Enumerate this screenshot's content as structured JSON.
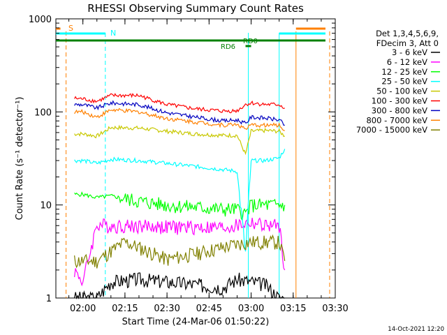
{
  "chart_data": {
    "type": "line",
    "title": "RHESSI Observing Summary Count Rates",
    "xlabel": "Start Time (24-Mar-06 01:50:22)",
    "ylabel": "Count Rate (s⁻¹ detector⁻¹)",
    "y_scale": "log",
    "ylim": [
      1,
      1000
    ],
    "xlim": [
      "01:50:22",
      "03:30:00"
    ],
    "x_ticks": [
      "02:00",
      "02:15",
      "02:30",
      "02:45",
      "03:00",
      "03:15",
      "03:30"
    ],
    "y_ticks": [
      "1",
      "10",
      "100",
      "1000"
    ],
    "timestamp": "14-Oct-2021 12:20",
    "legend": {
      "placement": "right",
      "header_line1": "Det 1,3,4,5,6,9,",
      "header_line2": "FDecim 3, Att 0"
    },
    "flags": [
      {
        "label": "S",
        "color": "#ff8000"
      },
      {
        "label": "N",
        "color": "#00ffff"
      },
      {
        "label": "RD0",
        "color": "#008000"
      },
      {
        "label": "RD6",
        "color": "#008000"
      }
    ],
    "series": [
      {
        "name": "3 - 6 keV",
        "color": "#000000",
        "x": [
          "01:57",
          "02:05",
          "02:10",
          "02:20",
          "02:30",
          "02:40",
          "02:50",
          "02:55",
          "03:00",
          "03:05",
          "03:10",
          "03:12"
        ],
        "y": [
          1.0,
          1.0,
          1.5,
          1.6,
          1.5,
          1.4,
          1.3,
          1.6,
          1.5,
          1.4,
          1.0,
          1.0
        ]
      },
      {
        "name": "6 - 12 keV",
        "color": "#ff00ff",
        "x": [
          "01:57",
          "02:00",
          "02:05",
          "02:10",
          "02:20",
          "02:30",
          "02:40",
          "02:50",
          "02:55",
          "03:00",
          "03:05",
          "03:10",
          "03:12"
        ],
        "y": [
          2.0,
          1.5,
          6.2,
          6.0,
          6.0,
          5.8,
          5.8,
          5.7,
          6.0,
          6.5,
          6.0,
          6.0,
          2.0
        ]
      },
      {
        "name": "12 - 25 keV",
        "color": "#00ff00",
        "x": [
          "01:57",
          "02:00",
          "02:05",
          "02:10",
          "02:20",
          "02:30",
          "02:40",
          "02:50",
          "02:55",
          "02:58",
          "03:00",
          "03:05",
          "03:10",
          "03:12"
        ],
        "y": [
          13,
          13,
          12,
          12.5,
          11,
          10,
          9.5,
          9,
          9,
          8,
          10,
          10,
          10,
          10
        ]
      },
      {
        "name": "25 - 50 keV",
        "color": "#00ffff",
        "x": [
          "01:57",
          "02:00",
          "02:05",
          "02:10",
          "02:20",
          "02:30",
          "02:40",
          "02:50",
          "02:55",
          "02:58",
          "03:00",
          "03:05",
          "03:10",
          "03:12"
        ],
        "y": [
          30,
          30,
          28,
          31,
          30,
          28,
          26,
          24,
          23,
          3,
          30,
          30,
          32,
          40
        ]
      },
      {
        "name": "50 - 100 keV",
        "color": "#c8c800",
        "x": [
          "01:57",
          "02:00",
          "02:05",
          "02:10",
          "02:20",
          "02:30",
          "02:40",
          "02:50",
          "02:55",
          "02:58",
          "03:00",
          "03:05",
          "03:10",
          "03:12"
        ],
        "y": [
          58,
          58,
          55,
          68,
          67,
          62,
          58,
          56,
          56,
          35,
          62,
          63,
          62,
          55
        ]
      },
      {
        "name": "100 - 300 keV",
        "color": "#ff0000",
        "x": [
          "01:57",
          "02:00",
          "02:05",
          "02:10",
          "02:20",
          "02:30",
          "02:40",
          "02:50",
          "02:55",
          "02:58",
          "03:00",
          "03:05",
          "03:10",
          "03:12"
        ],
        "y": [
          140,
          138,
          130,
          150,
          150,
          120,
          108,
          102,
          103,
          120,
          125,
          120,
          120,
          110
        ]
      },
      {
        "name": "300 - 800 keV",
        "color": "#0000c0",
        "x": [
          "01:57",
          "02:00",
          "02:05",
          "02:10",
          "02:20",
          "02:30",
          "02:40",
          "02:50",
          "02:55",
          "02:58",
          "03:00",
          "03:05",
          "03:10",
          "03:12"
        ],
        "y": [
          120,
          120,
          110,
          125,
          120,
          98,
          88,
          80,
          82,
          75,
          88,
          86,
          82,
          72
        ]
      },
      {
        "name": "800 - 7000 keV",
        "color": "#ff8000",
        "x": [
          "01:57",
          "02:00",
          "02:05",
          "02:10",
          "02:20",
          "02:30",
          "02:40",
          "02:50",
          "02:55",
          "02:58",
          "03:00",
          "03:05",
          "03:10",
          "03:12"
        ],
        "y": [
          100,
          100,
          88,
          105,
          100,
          85,
          78,
          72,
          74,
          65,
          72,
          72,
          72,
          63
        ]
      },
      {
        "name": "7000 - 15000 keV",
        "color": "#808000",
        "x": [
          "01:57",
          "02:00",
          "02:05",
          "02:10",
          "02:15",
          "02:20",
          "02:30",
          "02:40",
          "02:50",
          "02:55",
          "03:00",
          "03:05",
          "03:10",
          "03:12"
        ],
        "y": [
          2.5,
          2.5,
          2.5,
          3.2,
          4.0,
          3.5,
          2.6,
          3.0,
          3.5,
          3.8,
          4.0,
          4.0,
          4.0,
          2.5
        ]
      }
    ]
  }
}
